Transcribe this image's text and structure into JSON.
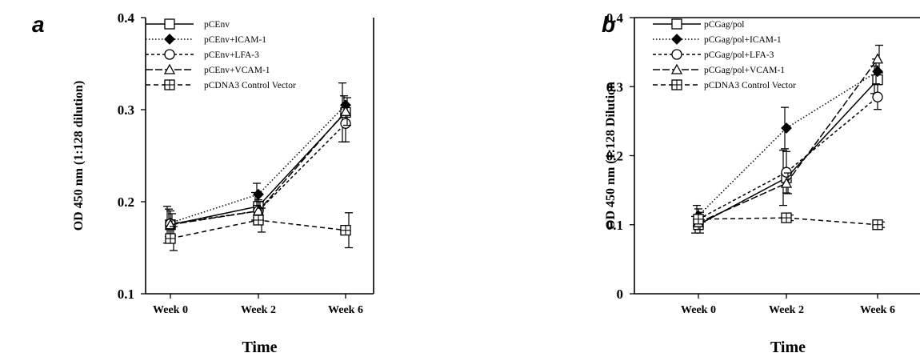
{
  "chart_data": [
    {
      "panel_label": "a",
      "type": "line",
      "categories": [
        "Week 0",
        "Week 2",
        "Week 6"
      ],
      "ylabel": "OD 450 nm (1:128 dilution)",
      "xlabel": "Time",
      "ylim": [
        0.1,
        0.4
      ],
      "yticks": [
        "0.1",
        "0.2",
        "0.3",
        "0.4"
      ],
      "ytick_values": [
        0.1,
        0.2,
        0.3,
        0.4
      ],
      "legend_position": "top",
      "series": [
        {
          "name": "pCEnv",
          "values": [
            0.175,
            0.195,
            0.297
          ],
          "errors": [
            0.02,
            0.015,
            0.032
          ],
          "marker": "square-open",
          "dash": "solid"
        },
        {
          "name": "pCEnv+ICAM-1",
          "values": [
            0.177,
            0.208,
            0.305
          ],
          "errors": [
            0.015,
            0.012,
            0.01
          ],
          "marker": "diamond-filled",
          "dash": "dotted"
        },
        {
          "name": "pCEnv+LFA-3",
          "values": [
            0.176,
            0.19,
            0.285
          ],
          "errors": [
            0.014,
            0.012,
            0.02
          ],
          "marker": "circle-open",
          "dash": "short-dash"
        },
        {
          "name": "pCEnv+VCAM-1",
          "values": [
            0.175,
            0.19,
            0.298
          ],
          "errors": [
            0.012,
            0.01,
            0.015
          ],
          "marker": "triangle-open",
          "dash": "long-dash"
        },
        {
          "name": "pCDNA3 Control Vector",
          "values": [
            0.16,
            0.18,
            0.169
          ],
          "errors": [
            0.013,
            0.013,
            0.019
          ],
          "marker": "square-cross",
          "dash": "dash"
        }
      ]
    },
    {
      "panel_label": "b",
      "type": "line",
      "categories": [
        "Week 0",
        "Week 2",
        "Week 6"
      ],
      "ylabel": "OD 450 nm (1:128 Dilution",
      "xlabel": "Time",
      "ylim": [
        0,
        0.4
      ],
      "yticks": [
        "0",
        "0.1",
        "0.2",
        "0.3",
        "0.4"
      ],
      "ytick_values": [
        0,
        0.1,
        0.2,
        0.3,
        0.4
      ],
      "legend_position": "top",
      "series": [
        {
          "name": "pCGag/pol",
          "values": [
            0.1,
            0.168,
            0.31
          ],
          "errors": [
            0.012,
            0.04,
            0.02
          ],
          "marker": "square-open",
          "dash": "solid"
        },
        {
          "name": "pCGag/pol+ICAM-1",
          "values": [
            0.113,
            0.24,
            0.322
          ],
          "errors": [
            0.015,
            0.03,
            0.018
          ],
          "marker": "diamond-filled",
          "dash": "dotted"
        },
        {
          "name": "pCGag/pol+LFA-3",
          "values": [
            0.108,
            0.176,
            0.285
          ],
          "errors": [
            0.015,
            0.03,
            0.018
          ],
          "marker": "circle-open",
          "dash": "short-dash"
        },
        {
          "name": "pCGag/pol+VCAM-1",
          "values": [
            0.103,
            0.16,
            0.34
          ],
          "errors": [
            0.015,
            0.015,
            0.02
          ],
          "marker": "triangle-open",
          "dash": "long-dash"
        },
        {
          "name": "pCDNA3 Control Vector",
          "values": [
            0.108,
            0.11,
            0.1
          ],
          "errors": [
            0.004,
            0.004,
            0.004
          ],
          "marker": "square-cross",
          "dash": "dash"
        }
      ]
    }
  ]
}
